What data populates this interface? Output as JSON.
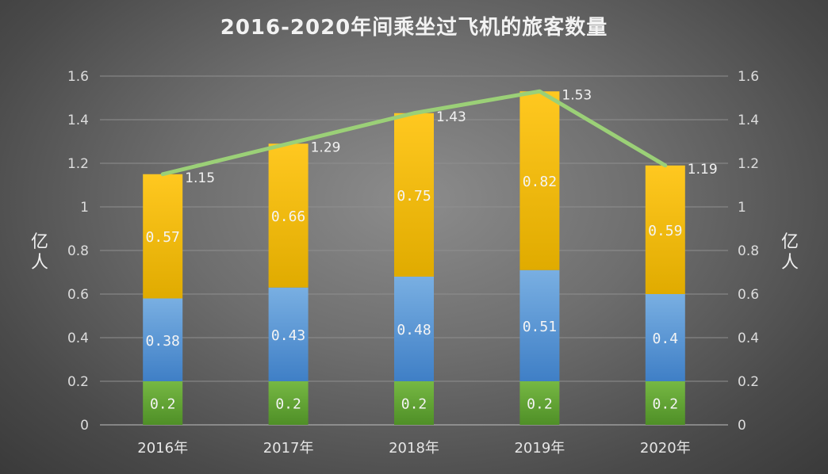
{
  "chart_data": {
    "type": "bar",
    "stacked": true,
    "title": "2016-2020年间乘坐过飞机的旅客数量",
    "categories": [
      "2016年",
      "2017年",
      "2018年",
      "2019年",
      "2020年"
    ],
    "series": [
      {
        "values": [
          0.2,
          0.2,
          0.2,
          0.2,
          0.2
        ],
        "color": "#6aaa3a"
      },
      {
        "values": [
          0.38,
          0.43,
          0.48,
          0.51,
          0.4
        ],
        "color": "#5b9bd5"
      },
      {
        "values": [
          0.57,
          0.66,
          0.75,
          0.82,
          0.59
        ],
        "color": "#f5bf00"
      }
    ],
    "line": {
      "type": "line",
      "values": [
        1.15,
        1.29,
        1.43,
        1.53,
        1.19
      ],
      "color": "#9bd077"
    },
    "ylabel": "亿人",
    "y2label": "亿人",
    "ylim": [
      0,
      1.6
    ],
    "yticks": [
      "0",
      "0.2",
      "0.4",
      "0.6",
      "0.8",
      "1",
      "1.2",
      "1.4",
      "1.6"
    ],
    "grid": true,
    "legend": "none"
  }
}
